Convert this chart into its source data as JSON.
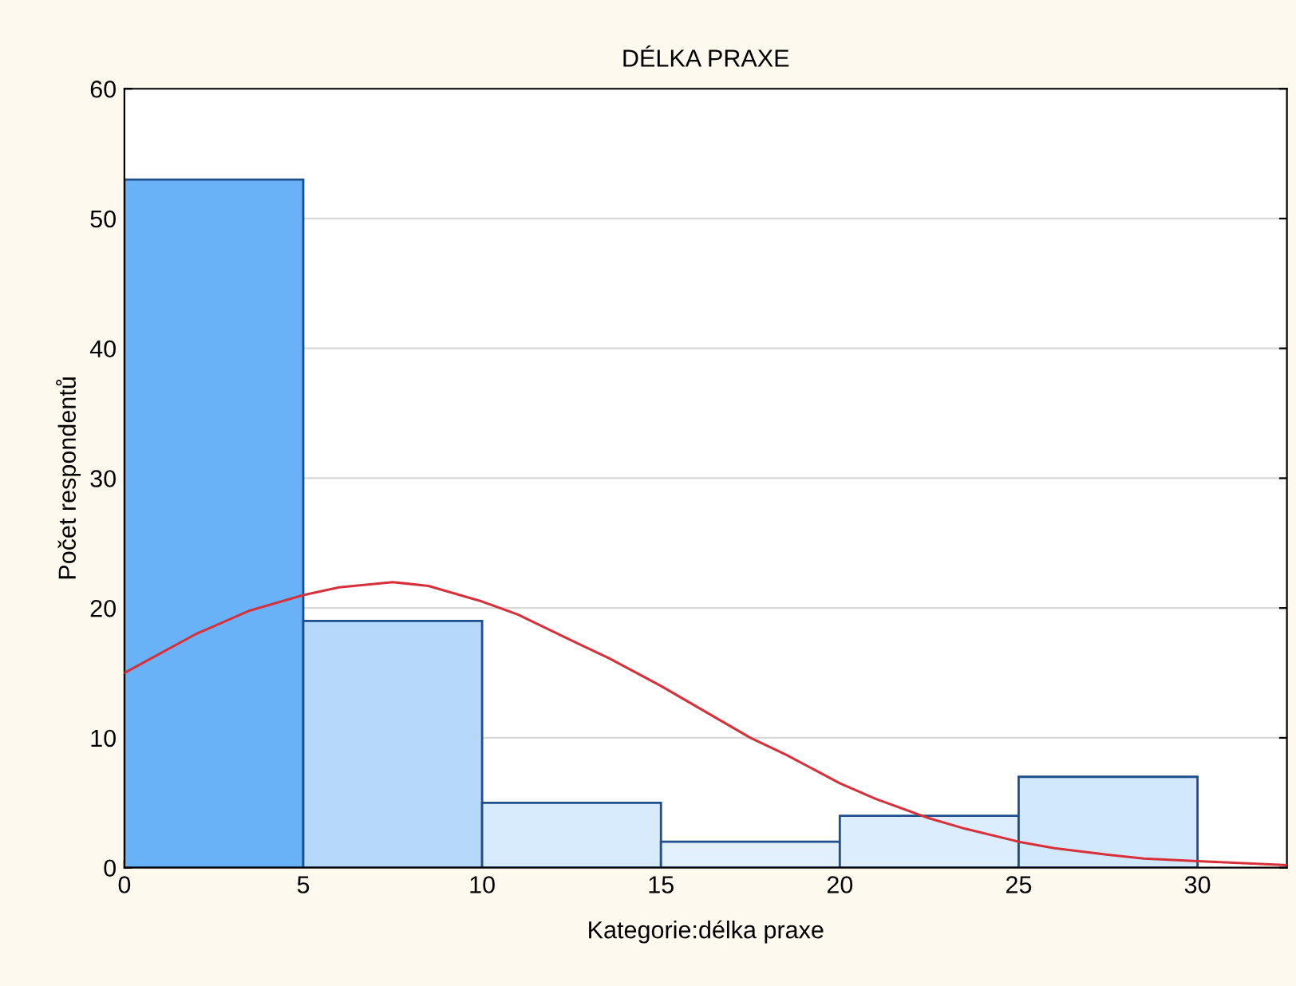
{
  "chart_data": {
    "type": "histogram",
    "title": "DÉLKA PRAXE",
    "xlabel": "Kategorie:délka praxe",
    "ylabel": "Počet respondentů",
    "bins": [
      0,
      5,
      10,
      15,
      20,
      25,
      30
    ],
    "values": [
      53,
      19,
      5,
      2,
      4,
      7
    ],
    "colors": [
      "#6ab2f8",
      "#b5d8fb",
      "#d8ebfd",
      "#e2f0fd",
      "#dcedfd",
      "#d2e8fc"
    ],
    "series": [
      {
        "type": "line",
        "color": "#d8303a",
        "x": [
          0,
          1,
          2,
          3.5,
          5,
          6,
          7.5,
          8.5,
          10,
          11,
          12.5,
          13.5,
          15,
          16,
          17.5,
          18.5,
          20,
          21,
          22.5,
          23.5,
          25,
          26,
          27.5,
          28.5,
          30,
          32.5
        ],
        "values": [
          15,
          16.5,
          18,
          19.8,
          21,
          21.6,
          22,
          21.7,
          20.5,
          19.5,
          17.5,
          16.2,
          14,
          12.4,
          10,
          8.7,
          6.5,
          5.3,
          3.8,
          3,
          2,
          1.5,
          1,
          0.7,
          0.5,
          0.2
        ]
      }
    ],
    "xlim": [
      0,
      32.5
    ],
    "ylim": [
      0,
      60
    ],
    "xticks": [
      0,
      5,
      10,
      15,
      20,
      25,
      30
    ],
    "yticks": [
      0,
      10,
      20,
      30,
      40,
      50,
      60
    ],
    "grid": "y"
  }
}
